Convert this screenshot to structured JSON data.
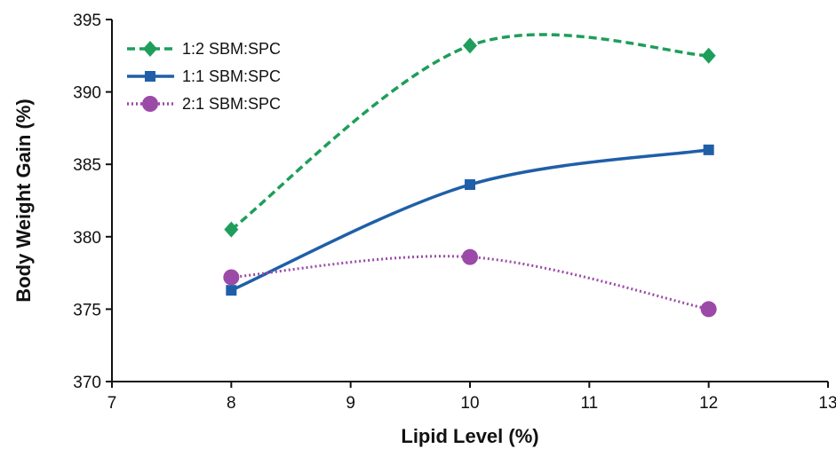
{
  "chart_data": {
    "type": "line",
    "title": "",
    "xlabel": "Lipid Level (%)",
    "ylabel": "Body Weight Gain (%)",
    "xlim": [
      7,
      13
    ],
    "ylim": [
      370,
      395
    ],
    "xticks": [
      7,
      8,
      9,
      10,
      11,
      12,
      13
    ],
    "yticks": [
      370,
      375,
      380,
      385,
      390,
      395
    ],
    "x": [
      8,
      10,
      12
    ],
    "grid": false,
    "legend_position": "top-left",
    "series": [
      {
        "name": "1:2 SBM:SPC",
        "values": [
          380.5,
          393.2,
          392.5
        ],
        "color": "#1e9e5a",
        "marker": "diamond",
        "line_style": "dashed"
      },
      {
        "name": "1:1 SBM:SPC",
        "values": [
          376.3,
          383.6,
          386.0
        ],
        "color": "#1f5fa8",
        "marker": "square",
        "line_style": "solid"
      },
      {
        "name": "2:1 SBM:SPC",
        "values": [
          377.2,
          378.6,
          375.0
        ],
        "color": "#9b4aa8",
        "marker": "circle",
        "line_style": "dotted"
      }
    ]
  }
}
